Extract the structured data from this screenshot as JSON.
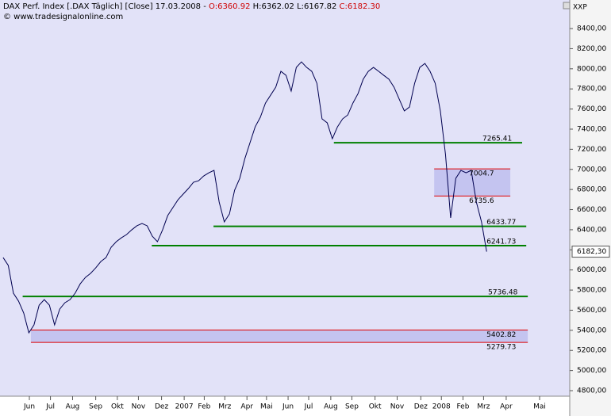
{
  "chart_data": {
    "type": "line",
    "header": {
      "title": "DAX Perf. Index [.DAX Täglich] [Close] 17.03.2008 -",
      "ohlc": [
        "O:6360.92",
        "H:6362.02",
        "L:6167.82",
        "C:6182.30"
      ],
      "source": "© www.tradesignalonline.com"
    },
    "axis_name": "XXP",
    "series": [
      {
        "name": "DAX",
        "color": "#000050",
        "values": [
          6123,
          6045,
          5769,
          5690,
          5572,
          5375,
          5454,
          5650,
          5705,
          5650,
          5454,
          5611,
          5674,
          5705,
          5769,
          5863,
          5926,
          5966,
          6021,
          6084,
          6123,
          6226,
          6281,
          6320,
          6352,
          6399,
          6439,
          6462,
          6439,
          6336,
          6281,
          6399,
          6541,
          6620,
          6698,
          6754,
          6809,
          6872,
          6887,
          6935,
          6966,
          6990,
          6675,
          6478,
          6557,
          6793,
          6911,
          7108,
          7266,
          7423,
          7518,
          7659,
          7738,
          7817,
          7975,
          7935,
          7778,
          8014,
          8069,
          8014,
          7975,
          7856,
          7502,
          7463,
          7305,
          7423,
          7502,
          7541,
          7659,
          7754,
          7896,
          7975,
          8014,
          7975,
          7935,
          7896,
          7817,
          7699,
          7581,
          7620,
          7856,
          8014,
          8053,
          7975,
          7856,
          7581,
          7148,
          6518,
          6911,
          6990,
          6966,
          6990,
          6675,
          6478,
          6182
        ]
      }
    ],
    "last": {
      "value": 6182.3,
      "label": "6182,30"
    },
    "levels": [
      {
        "value": 7265.41,
        "x": [
          64.3,
          100.9
        ]
      },
      {
        "value": 6433.77,
        "x": [
          40.9,
          101.7
        ]
      },
      {
        "value": 6241.73,
        "x": [
          28.9,
          101.7
        ]
      },
      {
        "value": 5736.48,
        "x": [
          3.8,
          102
        ]
      }
    ],
    "level_color": "#008000",
    "bands": [
      {
        "top": 7004.7,
        "bottom": 6735.6,
        "x": [
          83.8,
          98.6
        ]
      },
      {
        "top": 5402.82,
        "bottom": 5279.73,
        "x": [
          5.4,
          102
        ]
      }
    ],
    "band_color": "#e00000",
    "xlim": [
      -0.3,
      110
    ],
    "xticks": [
      {
        "value": 5.1,
        "label": "Jun"
      },
      {
        "value": 9.2,
        "label": "Jul"
      },
      {
        "value": 13.5,
        "label": "Aug"
      },
      {
        "value": 18,
        "label": "Sep"
      },
      {
        "value": 22.2,
        "label": "Okt"
      },
      {
        "value": 26.3,
        "label": "Nov"
      },
      {
        "value": 30.8,
        "label": "Dez"
      },
      {
        "value": 35.2,
        "label": "2007"
      },
      {
        "value": 39.1,
        "label": "Feb"
      },
      {
        "value": 43.1,
        "label": "Mrz"
      },
      {
        "value": 47.4,
        "label": "Apr"
      },
      {
        "value": 51.2,
        "label": "Mai"
      },
      {
        "value": 55.4,
        "label": "Jun"
      },
      {
        "value": 59.4,
        "label": "Jul"
      },
      {
        "value": 63.7,
        "label": "Aug"
      },
      {
        "value": 67.8,
        "label": "Sep"
      },
      {
        "value": 72.3,
        "label": "Okt"
      },
      {
        "value": 76.6,
        "label": "Nov"
      },
      {
        "value": 81.2,
        "label": "Dez"
      },
      {
        "value": 85.2,
        "label": "2008"
      },
      {
        "value": 89.4,
        "label": "Feb"
      },
      {
        "value": 93.4,
        "label": "Mrz"
      },
      {
        "value": 97.8,
        "label": "Apr"
      },
      {
        "value": 104.3,
        "label": "Mai"
      }
    ],
    "ylim": [
      4745,
      8684
    ],
    "yticks": [
      {
        "value": 4800,
        "label": "4800,00"
      },
      {
        "value": 5000,
        "label": "5000,00"
      },
      {
        "value": 5200,
        "label": "5200,00"
      },
      {
        "value": 5400,
        "label": "5400,00"
      },
      {
        "value": 5600,
        "label": "5600,00"
      },
      {
        "value": 5800,
        "label": "5800,00"
      },
      {
        "value": 6000,
        "label": "6000,00"
      },
      {
        "value": 6200,
        "label": "6200,00"
      },
      {
        "value": 6400,
        "label": "6400,00"
      },
      {
        "value": 6600,
        "label": "6600,00"
      },
      {
        "value": 6800,
        "label": "6800,00"
      },
      {
        "value": 7000,
        "label": "7000,00"
      },
      {
        "value": 7200,
        "label": "7200,00"
      },
      {
        "value": 7400,
        "label": "7400,00"
      },
      {
        "value": 7600,
        "label": "7600,00"
      },
      {
        "value": 7800,
        "label": "7800,00"
      },
      {
        "value": 8000,
        "label": "8000,00"
      },
      {
        "value": 8200,
        "label": "8200,00"
      },
      {
        "value": 8400,
        "label": "8400,00"
      }
    ]
  }
}
